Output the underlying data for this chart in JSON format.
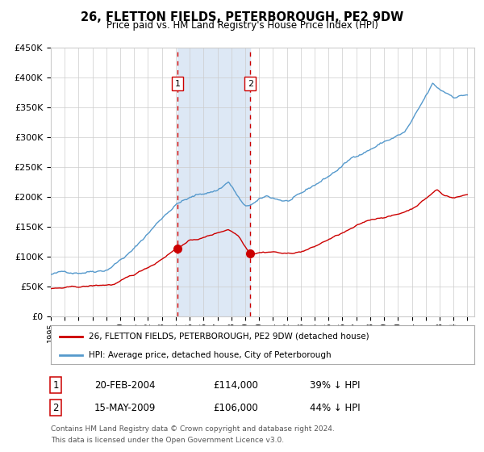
{
  "title": "26, FLETTON FIELDS, PETERBOROUGH, PE2 9DW",
  "subtitle": "Price paid vs. HM Land Registry's House Price Index (HPI)",
  "legend_line1": "26, FLETTON FIELDS, PETERBOROUGH, PE2 9DW (detached house)",
  "legend_line2": "HPI: Average price, detached house, City of Peterborough",
  "annotation1_label": "1",
  "annotation1_date": "20-FEB-2004",
  "annotation1_price": 114000,
  "annotation1_pct": "39% ↓ HPI",
  "annotation1_year": 2004.13,
  "annotation2_label": "2",
  "annotation2_date": "15-MAY-2009",
  "annotation2_price": 106000,
  "annotation2_pct": "44% ↓ HPI",
  "annotation2_year": 2009.37,
  "footer_line1": "Contains HM Land Registry data © Crown copyright and database right 2024.",
  "footer_line2": "This data is licensed under the Open Government Licence v3.0.",
  "red_color": "#cc0000",
  "blue_color": "#5599cc",
  "shade_color": "#dde8f5",
  "grid_color": "#cccccc",
  "ylim_max": 450000,
  "xmin": 1995.0,
  "xmax": 2025.5
}
